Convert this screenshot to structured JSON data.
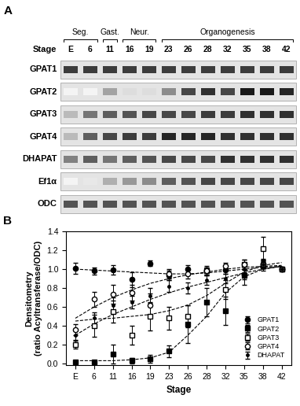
{
  "gel": {
    "panel_label": "A",
    "stage_label": "Stage",
    "lanes": [
      "E",
      "6",
      "11",
      "16",
      "19",
      "23",
      "26",
      "28",
      "32",
      "35",
      "38",
      "42"
    ],
    "groups": [
      {
        "label": "Seg.",
        "lanes": [
          "E",
          "6"
        ]
      },
      {
        "label": "Gast.",
        "lanes": [
          "11"
        ]
      },
      {
        "label": "Neur.",
        "lanes": [
          "16",
          "19"
        ]
      },
      {
        "label": "Organogenesis",
        "lanes": [
          "23",
          "26",
          "28",
          "32",
          "35",
          "38",
          "42"
        ]
      }
    ],
    "rows": [
      {
        "name": "GPAT1",
        "band_intensity": [
          0.85,
          0.85,
          0.85,
          0.85,
          0.85,
          0.85,
          0.85,
          0.85,
          0.85,
          0.85,
          0.85,
          0.85
        ]
      },
      {
        "name": "GPAT2",
        "band_intensity": [
          0.05,
          0.05,
          0.4,
          0.15,
          0.15,
          0.5,
          0.8,
          0.9,
          0.8,
          1.0,
          1.0,
          0.95
        ]
      },
      {
        "name": "GPAT3",
        "band_intensity": [
          0.3,
          0.6,
          0.7,
          0.75,
          0.8,
          0.8,
          0.8,
          0.85,
          0.85,
          0.9,
          0.9,
          0.9
        ]
      },
      {
        "name": "GPAT4",
        "band_intensity": [
          0.3,
          0.7,
          0.8,
          0.85,
          0.85,
          0.95,
          0.95,
          0.95,
          0.9,
          0.9,
          0.9,
          0.9
        ]
      },
      {
        "name": "DHAPAT",
        "band_intensity": [
          0.55,
          0.7,
          0.6,
          0.7,
          0.75,
          0.8,
          0.8,
          0.8,
          0.9,
          0.9,
          0.9,
          0.9
        ]
      },
      {
        "name": "Ef1α",
        "band_intensity": [
          0.05,
          0.1,
          0.35,
          0.45,
          0.5,
          0.7,
          0.75,
          0.8,
          0.8,
          0.8,
          0.8,
          0.8
        ]
      },
      {
        "name": "ODC",
        "band_intensity": [
          0.75,
          0.75,
          0.75,
          0.75,
          0.75,
          0.75,
          0.75,
          0.75,
          0.75,
          0.75,
          0.75,
          0.75
        ]
      }
    ]
  },
  "chart_data": {
    "type": "scatter",
    "annotations": [
      {
        "text": "B"
      }
    ],
    "x_label": "Stage",
    "y_label": "Densitometry\n(ratio Acyltransferase/ODC)",
    "categories": [
      "E",
      "6",
      "11",
      "16",
      "19",
      "23",
      "26",
      "28",
      "32",
      "35",
      "38",
      "42"
    ],
    "ylim": [
      -0.02,
      1.4
    ],
    "yticks": [
      {
        "value": 0.0,
        "label": "0.0"
      },
      {
        "value": 0.2,
        "label": "0.2"
      },
      {
        "value": 0.4,
        "label": "0.4"
      },
      {
        "value": 0.6,
        "label": "0.6"
      },
      {
        "value": 0.8,
        "label": "0.8"
      },
      {
        "value": 1.0,
        "label": "1.0"
      },
      {
        "value": 1.2,
        "label": "1.2"
      },
      {
        "value": 1.4,
        "label": "1.4"
      }
    ],
    "legend": "lower right",
    "series": [
      {
        "name": "GPAT1",
        "color": "#000000",
        "marker": "filled_circle",
        "values": [
          1.01,
          0.98,
          0.99,
          0.89,
          1.06,
          0.93,
          1.0,
          0.98,
          0.99,
          0.94,
          1.06,
          1.0
        ],
        "errors": [
          0.06,
          0.04,
          0.05,
          0.08,
          0.03,
          0.05,
          0.04,
          0.04,
          0.04,
          0.05,
          0.05,
          0.0
        ],
        "fit_values": [
          1.0,
          0.99,
          0.98,
          0.97,
          0.96,
          0.95,
          0.95,
          0.96,
          0.98,
          1.0,
          1.02,
          1.03
        ],
        "line_style": "dashed"
      },
      {
        "name": "GPAT2",
        "color": "#000000",
        "marker": "filled_square",
        "values": [
          0.02,
          0.02,
          0.1,
          0.03,
          0.05,
          0.13,
          0.42,
          0.65,
          0.56,
          0.93,
          1.03,
          1.0
        ],
        "errors": [
          0.01,
          0.01,
          0.1,
          0.03,
          0.04,
          0.06,
          0.2,
          0.15,
          0.15,
          0.1,
          0.05,
          0.0
        ],
        "fit_values": [
          0.03,
          0.03,
          0.03,
          0.04,
          0.06,
          0.12,
          0.3,
          0.5,
          0.75,
          0.92,
          1.0,
          1.03
        ],
        "line_style": "dashed"
      },
      {
        "name": "GPAT3",
        "color": "#000000",
        "marker": "open_square",
        "values": [
          0.2,
          0.4,
          0.55,
          0.3,
          0.5,
          0.48,
          0.5,
          0.98,
          0.78,
          1.05,
          1.22,
          1.0
        ],
        "errors": [
          0.04,
          0.12,
          0.12,
          0.1,
          0.15,
          0.12,
          0.12,
          0.05,
          0.1,
          0.05,
          0.12,
          0.0
        ],
        "fit_values": [
          0.45,
          0.47,
          0.48,
          0.5,
          0.52,
          0.56,
          0.62,
          0.72,
          0.85,
          0.97,
          1.04,
          1.07
        ],
        "line_style": "dashed"
      },
      {
        "name": "GPAT4",
        "color": "#000000",
        "marker": "open_circle",
        "values": [
          0.36,
          0.68,
          0.73,
          0.75,
          0.62,
          0.95,
          0.95,
          0.98,
          1.03,
          1.05,
          1.05,
          1.0
        ],
        "errors": [
          0.06,
          0.08,
          0.1,
          0.08,
          0.12,
          0.05,
          0.05,
          0.04,
          0.04,
          0.05,
          0.04,
          0.0
        ],
        "fit_values": [
          0.48,
          0.6,
          0.7,
          0.78,
          0.85,
          0.9,
          0.94,
          0.97,
          1.0,
          1.02,
          1.03,
          1.04
        ],
        "line_style": "dashed"
      },
      {
        "name": "DHAPAT",
        "color": "#000000",
        "marker": "dot",
        "values": [
          0.3,
          0.48,
          0.62,
          0.65,
          0.72,
          0.82,
          0.8,
          0.88,
          0.9,
          1.0,
          1.05,
          1.0
        ],
        "errors": [
          0.05,
          0.06,
          0.08,
          0.07,
          0.08,
          0.06,
          0.06,
          0.05,
          0.05,
          0.04,
          0.04,
          0.0
        ],
        "fit_values": [
          0.3,
          0.42,
          0.52,
          0.6,
          0.68,
          0.75,
          0.81,
          0.86,
          0.91,
          0.96,
          1.0,
          1.03
        ],
        "line_style": "dashed"
      }
    ]
  }
}
